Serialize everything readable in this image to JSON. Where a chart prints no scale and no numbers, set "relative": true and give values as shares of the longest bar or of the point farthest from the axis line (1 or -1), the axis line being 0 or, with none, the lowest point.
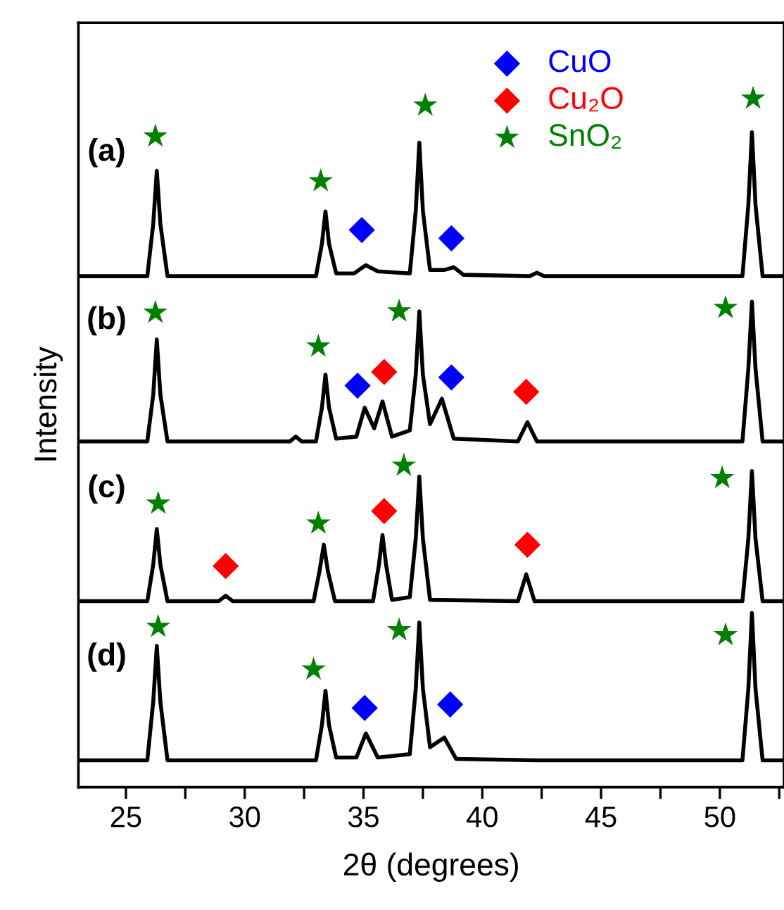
{
  "chart_data": {
    "type": "line",
    "relative": true,
    "xlabel": "2θ (degrees)",
    "ylabel": "Intensity",
    "xlim": [
      23.0,
      52.7
    ],
    "xticks": [
      {
        "value": 25,
        "label": "25"
      },
      {
        "value": 27.5,
        "label": null
      },
      {
        "value": 30,
        "label": "30"
      },
      {
        "value": 32.5,
        "label": null
      },
      {
        "value": 35,
        "label": "35"
      },
      {
        "value": 37.5,
        "label": null
      },
      {
        "value": 40,
        "label": "40"
      },
      {
        "value": 42.5,
        "label": null
      },
      {
        "value": 45,
        "label": "45"
      },
      {
        "value": 47.5,
        "label": null
      },
      {
        "value": 50,
        "label": "50"
      },
      {
        "value": 52.5,
        "label": null
      }
    ],
    "tick_labels": "x",
    "legend": "top right",
    "line_style": "solid",
    "series": [
      {
        "color": "#000000",
        "x": [
          23.0,
          25.9,
          26.15,
          26.3,
          26.45,
          26.75,
          33.0,
          33.25,
          33.4,
          33.55,
          33.85,
          34.6,
          35.1,
          35.6,
          36.95,
          37.2,
          37.35,
          37.5,
          37.8,
          38.4,
          38.8,
          39.2,
          42.0,
          42.3,
          42.6,
          50.95,
          51.2,
          51.35,
          51.5,
          51.8,
          52.7
        ],
        "values": [
          0.742,
          0.742,
          0.818,
          0.895,
          0.818,
          0.742,
          0.742,
          0.789,
          0.836,
          0.789,
          0.746,
          0.746,
          0.758,
          0.749,
          0.746,
          0.837,
          0.936,
          0.837,
          0.751,
          0.751,
          0.755,
          0.744,
          0.742,
          0.747,
          0.742,
          0.742,
          0.846,
          0.951,
          0.846,
          0.742,
          0.742
        ]
      },
      {
        "color": "#000000",
        "x": [
          23.0,
          25.9,
          26.15,
          26.3,
          26.45,
          26.75,
          31.9,
          32.15,
          32.4,
          33.0,
          33.25,
          33.4,
          33.55,
          33.85,
          34.7,
          35.05,
          35.45,
          35.8,
          36.2,
          36.95,
          37.2,
          37.35,
          37.5,
          37.8,
          38.3,
          38.8,
          41.5,
          41.9,
          42.3,
          50.95,
          51.2,
          51.35,
          51.5,
          51.8,
          52.7
        ],
        "values": [
          0.502,
          0.502,
          0.57,
          0.65,
          0.57,
          0.502,
          0.502,
          0.509,
          0.502,
          0.502,
          0.551,
          0.599,
          0.551,
          0.506,
          0.509,
          0.551,
          0.521,
          0.56,
          0.509,
          0.518,
          0.599,
          0.691,
          0.599,
          0.527,
          0.564,
          0.506,
          0.502,
          0.53,
          0.502,
          0.502,
          0.608,
          0.705,
          0.608,
          0.502,
          0.502
        ]
      },
      {
        "color": "#000000",
        "x": [
          23.0,
          25.9,
          26.15,
          26.3,
          26.45,
          26.75,
          28.9,
          29.2,
          29.5,
          32.9,
          33.15,
          33.33,
          33.5,
          33.8,
          35.4,
          35.65,
          35.8,
          35.95,
          36.2,
          36.95,
          37.2,
          37.35,
          37.5,
          37.8,
          41.5,
          41.85,
          42.2,
          50.95,
          51.2,
          51.35,
          51.5,
          51.8,
          52.7
        ],
        "values": [
          0.27,
          0.27,
          0.323,
          0.375,
          0.323,
          0.27,
          0.27,
          0.278,
          0.27,
          0.27,
          0.314,
          0.352,
          0.314,
          0.27,
          0.27,
          0.323,
          0.366,
          0.323,
          0.272,
          0.276,
          0.361,
          0.451,
          0.361,
          0.272,
          0.27,
          0.309,
          0.27,
          0.27,
          0.361,
          0.459,
          0.361,
          0.27,
          0.27
        ]
      },
      {
        "color": "#000000",
        "x": [
          23.0,
          25.9,
          26.15,
          26.3,
          26.45,
          26.75,
          33.0,
          33.25,
          33.4,
          33.55,
          33.85,
          34.7,
          35.1,
          35.6,
          36.95,
          37.2,
          37.35,
          37.5,
          37.8,
          38.4,
          38.9,
          42.3,
          50.95,
          51.2,
          51.35,
          51.5,
          51.8,
          52.7
        ],
        "values": [
          0.039,
          0.039,
          0.124,
          0.205,
          0.124,
          0.039,
          0.039,
          0.09,
          0.14,
          0.09,
          0.043,
          0.043,
          0.078,
          0.043,
          0.048,
          0.143,
          0.239,
          0.143,
          0.058,
          0.072,
          0.041,
          0.039,
          0.039,
          0.143,
          0.253,
          0.143,
          0.039,
          0.039
        ]
      },
      {
        "type": "scatter",
        "name": "CuO",
        "color": "#0000ff",
        "marker": "diamond",
        "x": [
          34.93,
          38.7,
          34.75,
          38.7,
          35.05,
          38.65
        ],
        "values": [
          0.809,
          0.797,
          0.583,
          0.595,
          0.115,
          0.12
        ]
      },
      {
        "type": "scatter",
        "name": "Cu₂O",
        "color": "#ff0000",
        "marker": "diamond",
        "x": [
          35.87,
          41.85,
          29.2,
          35.87,
          41.9
        ],
        "values": [
          0.603,
          0.574,
          0.321,
          0.401,
          0.352
        ]
      },
      {
        "type": "scatter",
        "name": "SnO₂",
        "color": "#008000",
        "marker": "star",
        "x": [
          26.24,
          33.2,
          37.6,
          51.4,
          26.24,
          33.1,
          36.5,
          50.24,
          26.36,
          33.1,
          36.7,
          50.1,
          26.36,
          32.9,
          36.5,
          50.24
        ],
        "values": [
          0.945,
          0.88,
          0.99,
          1.0,
          0.689,
          0.64,
          0.691,
          0.696,
          0.412,
          0.383,
          0.467,
          0.449,
          0.233,
          0.171,
          0.228,
          0.221
        ]
      }
    ],
    "annotations": [
      "(a)",
      "(b)",
      "(c)",
      "(d)"
    ]
  }
}
